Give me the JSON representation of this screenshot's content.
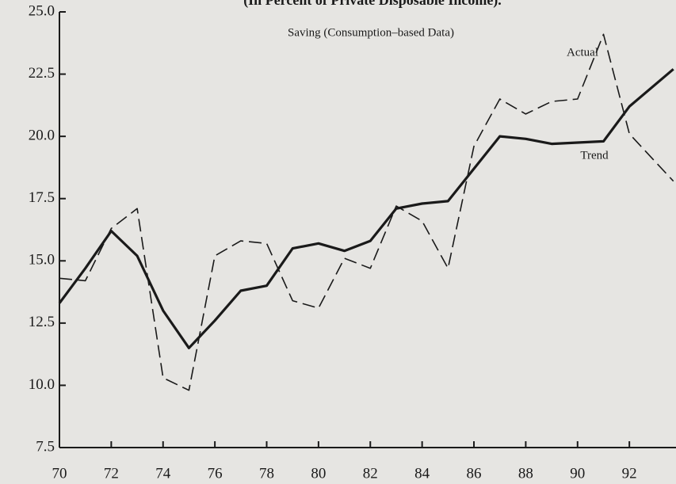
{
  "chart_data": {
    "type": "line",
    "title": "(In Percent of Private Disposable Income).",
    "annotation": "Saving (Consumption–based Data)",
    "x": [
      70,
      71,
      72,
      73,
      74,
      75,
      76,
      77,
      78,
      79,
      80,
      81,
      82,
      83,
      84,
      85,
      86,
      87,
      88,
      89,
      90,
      91,
      92,
      93.7
    ],
    "series": [
      {
        "name": "Actual",
        "color": "#1a1a1a",
        "dash": true,
        "values": [
          14.3,
          14.2,
          16.3,
          17.1,
          10.3,
          9.8,
          15.2,
          15.8,
          15.7,
          13.4,
          13.1,
          15.1,
          14.7,
          17.2,
          16.6,
          14.7,
          19.6,
          21.5,
          20.9,
          21.4,
          21.5,
          24.1,
          20.1,
          18.2
        ]
      },
      {
        "name": "Trend",
        "color": "#1a1a1a",
        "dash": false,
        "values": [
          13.3,
          14.7,
          16.2,
          15.2,
          13.0,
          11.5,
          12.6,
          13.8,
          14.0,
          15.5,
          15.7,
          15.4,
          15.8,
          17.1,
          17.3,
          17.4,
          18.7,
          20.0,
          19.9,
          19.7,
          19.75,
          19.8,
          21.2,
          22.7
        ]
      }
    ],
    "xlim": [
      70,
      93.8
    ],
    "xticks": [
      70,
      72,
      74,
      76,
      78,
      80,
      82,
      84,
      86,
      88,
      90,
      92
    ],
    "ylim": [
      7.5,
      25
    ],
    "yticks": [
      7.5,
      {
        "value": 10,
        "label": "10.0"
      },
      12.5,
      {
        "value": 15,
        "label": "15.0"
      },
      17.5,
      {
        "value": 20,
        "label": "20.0"
      },
      22.5,
      {
        "value": 25,
        "label": "25.0"
      }
    ]
  }
}
